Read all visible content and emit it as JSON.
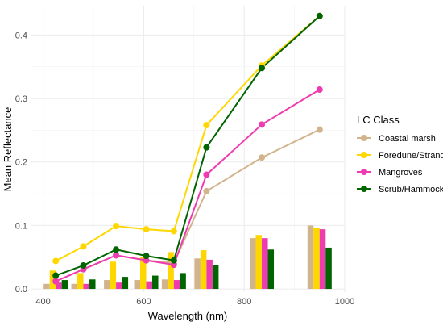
{
  "chart_data": {
    "type": "line",
    "xlabel": "Wavelength (nm)",
    "ylabel": "Mean Reflectance",
    "xlim": [
      375,
      1000
    ],
    "ylim": [
      -0.005,
      0.445
    ],
    "x_ticks": [
      400,
      600,
      800,
      1000
    ],
    "y_ticks": [
      0.0,
      0.1,
      0.2,
      0.3,
      0.4
    ],
    "x_tick_labels": [
      "400",
      "600",
      "800",
      "1000"
    ],
    "y_tick_labels": [
      "0.0",
      "0.1",
      "0.2",
      "0.3",
      "0.4"
    ],
    "grid": true,
    "legend_position": "right",
    "legend_title": "LC Class",
    "x": [
      425,
      480,
      545,
      605,
      660,
      725,
      835,
      950
    ],
    "series": [
      {
        "name": "Coastal marsh",
        "color": "#D2B48C",
        "values": [
          0.012,
          0.031,
          0.053,
          0.045,
          0.041,
          0.154,
          0.207,
          0.251
        ],
        "bar_values": [
          0.008,
          0.008,
          0.014,
          0.014,
          0.015,
          0.048,
          0.08,
          0.1
        ]
      },
      {
        "name": "Foredune/Strand",
        "color": "#FFD700",
        "values": [
          0.044,
          0.067,
          0.099,
          0.094,
          0.091,
          0.258,
          0.352,
          0.43
        ],
        "bar_values": [
          0.029,
          0.025,
          0.043,
          0.05,
          0.058,
          0.061,
          0.085,
          0.096
        ]
      },
      {
        "name": "Mangroves",
        "color": "#EE3BB0",
        "values": [
          0.012,
          0.031,
          0.053,
          0.045,
          0.038,
          0.18,
          0.259,
          0.314
        ],
        "bar_values": [
          0.01,
          0.008,
          0.01,
          0.012,
          0.014,
          0.046,
          0.08,
          0.094
        ]
      },
      {
        "name": "Scrub/Hammock",
        "color": "#006400",
        "values": [
          0.021,
          0.037,
          0.062,
          0.052,
          0.045,
          0.223,
          0.348,
          0.43
        ],
        "bar_values": [
          0.014,
          0.015,
          0.019,
          0.021,
          0.025,
          0.037,
          0.062,
          0.065
        ]
      }
    ]
  }
}
